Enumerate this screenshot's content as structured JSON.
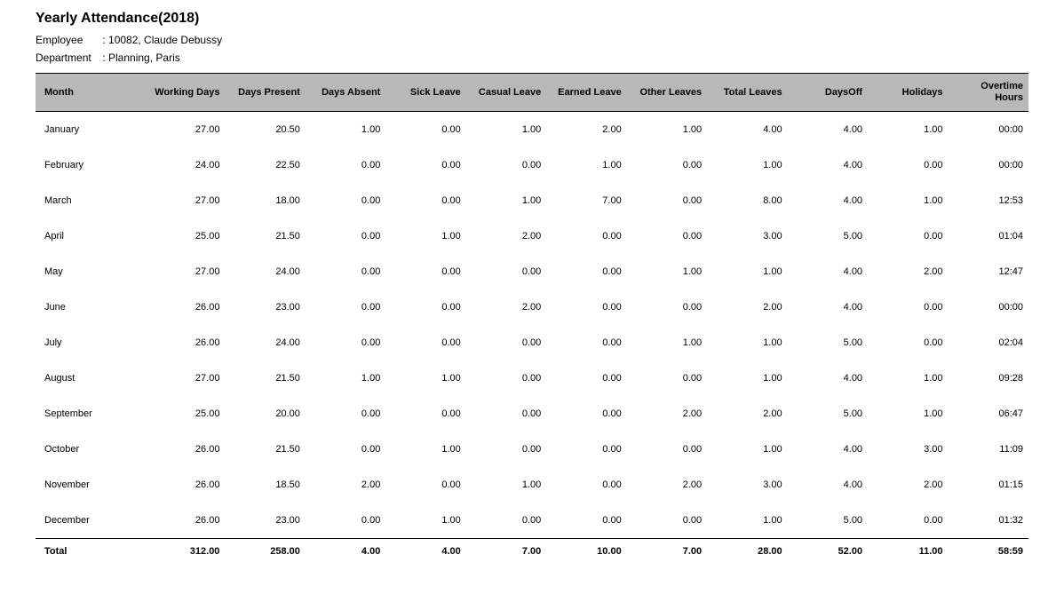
{
  "report": {
    "title": "Yearly Attendance(2018)",
    "employee_label": "Employee",
    "employee_value": "10082, Claude Debussy",
    "department_label": "Department",
    "department_value": "Planning, Paris"
  },
  "table": {
    "columns": [
      "Month",
      "Working Days",
      "Days Present",
      "Days Absent",
      "Sick Leave",
      "Casual Leave",
      "Earned Leave",
      "Other Leaves",
      "Total Leaves",
      "DaysOff",
      "Holidays",
      "Overtime Hours"
    ],
    "rows": [
      {
        "month": "January",
        "wd": "27.00",
        "dp": "20.50",
        "da": "1.00",
        "sl": "0.00",
        "cl": "1.00",
        "el": "2.00",
        "ol": "1.00",
        "tl": "4.00",
        "do": "4.00",
        "ho": "1.00",
        "ot": "00:00"
      },
      {
        "month": "February",
        "wd": "24.00",
        "dp": "22.50",
        "da": "0.00",
        "sl": "0.00",
        "cl": "0.00",
        "el": "1.00",
        "ol": "0.00",
        "tl": "1.00",
        "do": "4.00",
        "ho": "0.00",
        "ot": "00:00"
      },
      {
        "month": "March",
        "wd": "27.00",
        "dp": "18.00",
        "da": "0.00",
        "sl": "0.00",
        "cl": "1.00",
        "el": "7.00",
        "ol": "0.00",
        "tl": "8.00",
        "do": "4.00",
        "ho": "1.00",
        "ot": "12:53"
      },
      {
        "month": "April",
        "wd": "25.00",
        "dp": "21.50",
        "da": "0.00",
        "sl": "1.00",
        "cl": "2.00",
        "el": "0.00",
        "ol": "0.00",
        "tl": "3.00",
        "do": "5.00",
        "ho": "0.00",
        "ot": "01:04"
      },
      {
        "month": "May",
        "wd": "27.00",
        "dp": "24.00",
        "da": "0.00",
        "sl": "0.00",
        "cl": "0.00",
        "el": "0.00",
        "ol": "1.00",
        "tl": "1.00",
        "do": "4.00",
        "ho": "2.00",
        "ot": "12:47"
      },
      {
        "month": "June",
        "wd": "26.00",
        "dp": "23.00",
        "da": "0.00",
        "sl": "0.00",
        "cl": "2.00",
        "el": "0.00",
        "ol": "0.00",
        "tl": "2.00",
        "do": "4.00",
        "ho": "0.00",
        "ot": "00:00"
      },
      {
        "month": "July",
        "wd": "26.00",
        "dp": "24.00",
        "da": "0.00",
        "sl": "0.00",
        "cl": "0.00",
        "el": "0.00",
        "ol": "1.00",
        "tl": "1.00",
        "do": "5.00",
        "ho": "0.00",
        "ot": "02:04"
      },
      {
        "month": "August",
        "wd": "27.00",
        "dp": "21.50",
        "da": "1.00",
        "sl": "1.00",
        "cl": "0.00",
        "el": "0.00",
        "ol": "0.00",
        "tl": "1.00",
        "do": "4.00",
        "ho": "1.00",
        "ot": "09:28"
      },
      {
        "month": "September",
        "wd": "25.00",
        "dp": "20.00",
        "da": "0.00",
        "sl": "0.00",
        "cl": "0.00",
        "el": "0.00",
        "ol": "2.00",
        "tl": "2.00",
        "do": "5.00",
        "ho": "1.00",
        "ot": "06:47"
      },
      {
        "month": "October",
        "wd": "26.00",
        "dp": "21.50",
        "da": "0.00",
        "sl": "1.00",
        "cl": "0.00",
        "el": "0.00",
        "ol": "0.00",
        "tl": "1.00",
        "do": "4.00",
        "ho": "3.00",
        "ot": "11:09"
      },
      {
        "month": "November",
        "wd": "26.00",
        "dp": "18.50",
        "da": "2.00",
        "sl": "0.00",
        "cl": "1.00",
        "el": "0.00",
        "ol": "2.00",
        "tl": "3.00",
        "do": "4.00",
        "ho": "2.00",
        "ot": "01:15"
      },
      {
        "month": "December",
        "wd": "26.00",
        "dp": "23.00",
        "da": "0.00",
        "sl": "1.00",
        "cl": "0.00",
        "el": "0.00",
        "ol": "0.00",
        "tl": "1.00",
        "do": "5.00",
        "ho": "0.00",
        "ot": "01:32"
      }
    ],
    "total": {
      "label": "Total",
      "wd": "312.00",
      "dp": "258.00",
      "da": "4.00",
      "sl": "4.00",
      "cl": "7.00",
      "el": "10.00",
      "ol": "7.00",
      "tl": "28.00",
      "do": "52.00",
      "ho": "11.00",
      "ot": "58:59"
    }
  },
  "style": {
    "header_bg": "#b8b8b8",
    "text_color": "#000000",
    "border_color": "#000000",
    "body_bg": "#ffffff"
  }
}
